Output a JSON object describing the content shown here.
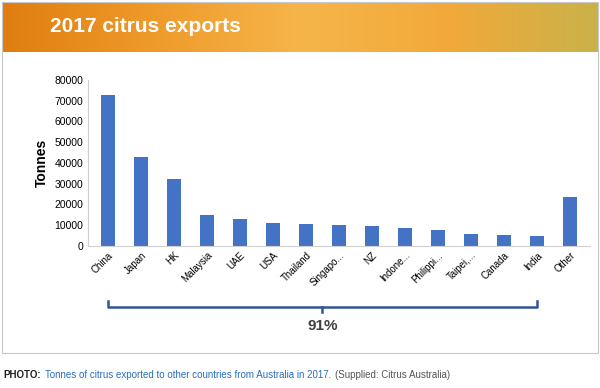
{
  "chart_data": {
    "type": "bar",
    "title": "2017 citrus exports",
    "y_label": "Tonnes",
    "categories": [
      "China",
      "Japan",
      "HK",
      "Malaysia",
      "UAE",
      "USA",
      "Thailand",
      "Singapo...",
      "NZ",
      "Indone...",
      "Philippi...",
      "Taipei,...",
      "Canada",
      "India",
      "Other"
    ],
    "values": [
      72500,
      43000,
      32500,
      15000,
      13000,
      11000,
      10500,
      10000,
      9500,
      8500,
      7500,
      6000,
      5500,
      5000,
      23500
    ],
    "color": "#4472c4",
    "ylim": [
      0,
      80000
    ],
    "yticks": [
      0,
      10000,
      20000,
      30000,
      40000,
      50000,
      60000,
      70000,
      80000
    ],
    "grid": false,
    "annotations": [
      {
        "text": "91%",
        "from": "China",
        "to": "India"
      }
    ]
  },
  "caption": {
    "label": "PHOTO:",
    "text": "Tonnes of citrus exported to other countries from Australia in 2017.",
    "source": "(Supplied: Citrus Australia)"
  }
}
